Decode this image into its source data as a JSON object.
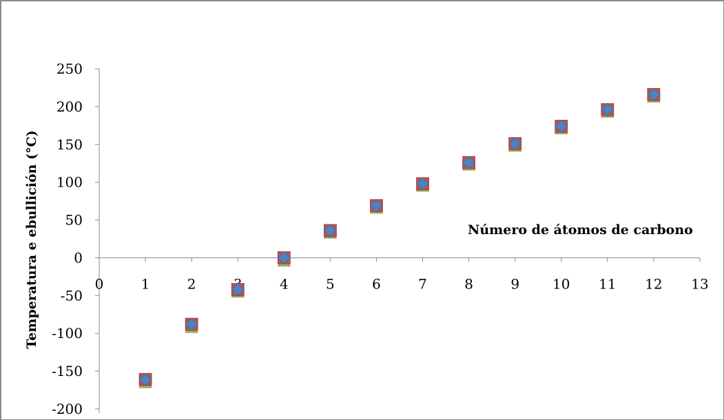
{
  "chart_data": {
    "type": "scatter",
    "title": "",
    "xlabel": "Número de átomos de carbono",
    "ylabel": "Temperatura e ebullición (°C)",
    "xlim": [
      0,
      13
    ],
    "ylim": [
      -200,
      250
    ],
    "x_ticks": [
      "0",
      "1",
      "2",
      "3",
      "4",
      "5",
      "6",
      "7",
      "8",
      "9",
      "10",
      "11",
      "12",
      "13"
    ],
    "y_ticks": [
      "250",
      "200",
      "150",
      "100",
      "50",
      "0",
      "-50",
      "-100",
      "-150",
      "-200"
    ],
    "grid": false,
    "legend": "none",
    "x": [
      1,
      2,
      3,
      4,
      5,
      6,
      7,
      8,
      9,
      10,
      11,
      12
    ],
    "series": [
      {
        "marker": "triangle",
        "color": "#9bbb59",
        "values": [
          -162,
          -89,
          -42,
          -1,
          36,
          69,
          98,
          126,
          151,
          174,
          196,
          216
        ]
      },
      {
        "marker": "square",
        "color": "#c0504d",
        "values": [
          -161,
          -88,
          -42,
          0,
          36,
          69,
          98,
          126,
          151,
          174,
          196,
          216
        ]
      },
      {
        "marker": "diamond",
        "color": "#4f81bd",
        "values": [
          -161,
          -88,
          -42,
          0,
          36,
          69,
          98,
          126,
          151,
          174,
          196,
          216
        ]
      }
    ]
  }
}
